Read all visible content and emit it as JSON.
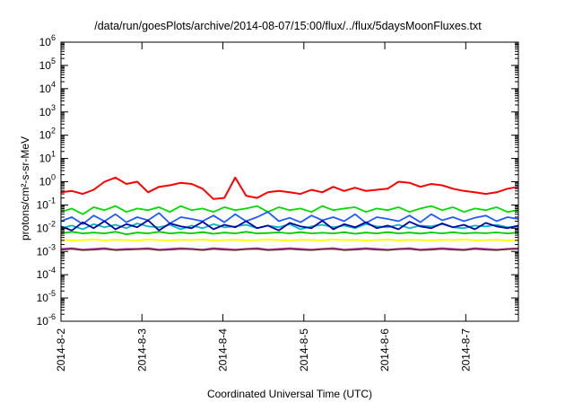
{
  "chart_data": {
    "type": "line",
    "title": "/data/run/goesPlots/archive/2014-08-07/15:00/flux/../flux/5daysMoonFluxes.txt",
    "xlabel": "Coordinated Universal Time (UTC)",
    "ylabel": "protons/cm²-s-sr-MeV",
    "yscale": "log",
    "ylim_exponents": [
      -6,
      6
    ],
    "y_tick_base": "10",
    "y_tick_exponents": [
      "6",
      "5",
      "4",
      "3",
      "2",
      "1",
      "0",
      "-1",
      "-2",
      "-3",
      "-4",
      "-5",
      "-6"
    ],
    "xlim_days": [
      0,
      5.65
    ],
    "x_tick_labels": [
      "2014-8-2",
      "2014-8-3",
      "2014-8-4",
      "2014-8-5",
      "2014-8-6",
      "2014-8-7"
    ],
    "x_tick_days": [
      0,
      1,
      2,
      3,
      4,
      5
    ],
    "grid": false,
    "series": [
      {
        "color": "#ff0000",
        "approx_level": 0.4,
        "values": [
          0.35,
          0.4,
          0.3,
          0.45,
          1.0,
          1.5,
          0.8,
          1.0,
          0.35,
          0.6,
          0.7,
          0.9,
          0.8,
          0.5,
          0.18,
          0.2,
          1.5,
          0.25,
          0.2,
          0.35,
          0.4,
          0.35,
          0.3,
          0.45,
          0.35,
          0.6,
          0.4,
          0.55,
          0.4,
          0.45,
          0.5,
          1.0,
          0.9,
          0.6,
          0.8,
          0.7,
          0.5,
          0.4,
          0.35,
          0.3,
          0.35,
          0.5,
          0.6
        ]
      },
      {
        "color": "#00dd00",
        "approx_level": 0.06,
        "values": [
          0.05,
          0.07,
          0.04,
          0.08,
          0.06,
          0.09,
          0.05,
          0.07,
          0.06,
          0.08,
          0.05,
          0.09,
          0.06,
          0.07,
          0.05,
          0.08,
          0.06,
          0.07,
          0.09,
          0.05,
          0.08,
          0.06,
          0.07,
          0.05,
          0.09,
          0.06,
          0.07,
          0.08,
          0.05,
          0.07,
          0.06,
          0.08,
          0.05,
          0.07,
          0.09,
          0.06,
          0.08,
          0.05,
          0.07,
          0.06,
          0.08,
          0.05,
          0.06
        ]
      },
      {
        "color": "#1e5bff",
        "approx_level": 0.025,
        "values": [
          0.02,
          0.03,
          0.015,
          0.035,
          0.02,
          0.04,
          0.018,
          0.03,
          0.022,
          0.045,
          0.016,
          0.03,
          0.025,
          0.02,
          0.035,
          0.018,
          0.04,
          0.02,
          0.03,
          0.05,
          0.02,
          0.028,
          0.018,
          0.035,
          0.022,
          0.03,
          0.02,
          0.04,
          0.017,
          0.03,
          0.025,
          0.02,
          0.035,
          0.018,
          0.04,
          0.022,
          0.03,
          0.02,
          0.028,
          0.035,
          0.02,
          0.03,
          0.025
        ]
      },
      {
        "color": "#00bbbb",
        "approx_level": 0.012,
        "values": [
          0.01,
          0.013,
          0.009,
          0.015,
          0.011,
          0.014,
          0.01,
          0.016,
          0.012,
          0.011,
          0.014,
          0.009,
          0.013,
          0.01,
          0.015,
          0.011,
          0.012,
          0.014,
          0.01,
          0.013,
          0.011,
          0.015,
          0.009,
          0.012,
          0.014,
          0.011,
          0.013,
          0.01,
          0.015,
          0.012,
          0.011,
          0.014,
          0.01,
          0.013,
          0.012,
          0.015,
          0.011,
          0.01,
          0.013,
          0.012,
          0.014,
          0.011,
          0.012
        ]
      },
      {
        "color": "#0000aa",
        "approx_level": 0.012,
        "values": [
          0.012,
          0.008,
          0.018,
          0.01,
          0.02,
          0.009,
          0.015,
          0.011,
          0.022,
          0.008,
          0.016,
          0.012,
          0.01,
          0.019,
          0.009,
          0.014,
          0.011,
          0.02,
          0.01,
          0.013,
          0.008,
          0.017,
          0.012,
          0.01,
          0.021,
          0.009,
          0.015,
          0.011,
          0.018,
          0.01,
          0.013,
          0.009,
          0.019,
          0.012,
          0.01,
          0.016,
          0.011,
          0.014,
          0.009,
          0.017,
          0.012,
          0.01,
          0.013
        ]
      },
      {
        "color": "#00cc00",
        "approx_level": 0.006,
        "values": [
          0.006,
          0.007,
          0.006,
          0.0065,
          0.006,
          0.007,
          0.0055,
          0.0065,
          0.006,
          0.007,
          0.006,
          0.0065,
          0.006,
          0.0068,
          0.0058,
          0.0065,
          0.006,
          0.007,
          0.006,
          0.0062,
          0.0066,
          0.006,
          0.0068,
          0.006,
          0.0064,
          0.006,
          0.0067,
          0.0058,
          0.0065,
          0.006,
          0.0068,
          0.006,
          0.0065,
          0.0059,
          0.0066,
          0.006,
          0.0067,
          0.006,
          0.0064,
          0.0061,
          0.0066,
          0.006,
          0.0065
        ]
      },
      {
        "color": "#ffff00",
        "approx_level": 0.003,
        "values": [
          0.0032,
          0.003,
          0.0031,
          0.0033,
          0.003,
          0.0032,
          0.0031,
          0.003,
          0.0033,
          0.0031,
          0.003,
          0.0032,
          0.0031,
          0.0033,
          0.003,
          0.0031,
          0.0032,
          0.003,
          0.0031,
          0.0033,
          0.0031,
          0.003,
          0.0032,
          0.0031,
          0.003,
          0.0033,
          0.0031,
          0.0032,
          0.003,
          0.0031,
          0.0033,
          0.003,
          0.0032,
          0.0031,
          0.003,
          0.0032,
          0.0031,
          0.0033,
          0.003,
          0.0031,
          0.0032,
          0.003,
          0.0031
        ]
      },
      {
        "color": "#dd33dd",
        "approx_level": 0.0013,
        "values": [
          0.0013,
          0.0014,
          0.0012,
          0.0013,
          0.0014,
          0.0012,
          0.0013,
          0.0013,
          0.0014,
          0.0012,
          0.0013,
          0.0014,
          0.0013,
          0.0012,
          0.0014,
          0.0013,
          0.0012,
          0.0013,
          0.0014,
          0.0012,
          0.0013,
          0.0014,
          0.0013,
          0.0012,
          0.0013,
          0.0014,
          0.0012,
          0.0013,
          0.0014,
          0.0013,
          0.0012,
          0.0013,
          0.0014,
          0.0012,
          0.0013,
          0.0014,
          0.0013,
          0.0012,
          0.0014,
          0.0013,
          0.0012,
          0.0013,
          0.0014
        ]
      },
      {
        "color": "#663333",
        "approx_level": 0.0012,
        "values": [
          0.0012,
          0.0013,
          0.00115,
          0.0012,
          0.0013,
          0.00115,
          0.0012,
          0.00125,
          0.0013,
          0.00115,
          0.0012,
          0.0013,
          0.00125,
          0.00115,
          0.0013,
          0.0012,
          0.00115,
          0.00125,
          0.0013,
          0.00115,
          0.0012,
          0.0013,
          0.0012,
          0.00115,
          0.00125,
          0.0013,
          0.00115,
          0.0012,
          0.0013,
          0.0012,
          0.00115,
          0.00125,
          0.0013,
          0.00115,
          0.0012,
          0.0013,
          0.0012,
          0.00115,
          0.0013,
          0.0012,
          0.00115,
          0.00125,
          0.0013
        ]
      }
    ]
  }
}
